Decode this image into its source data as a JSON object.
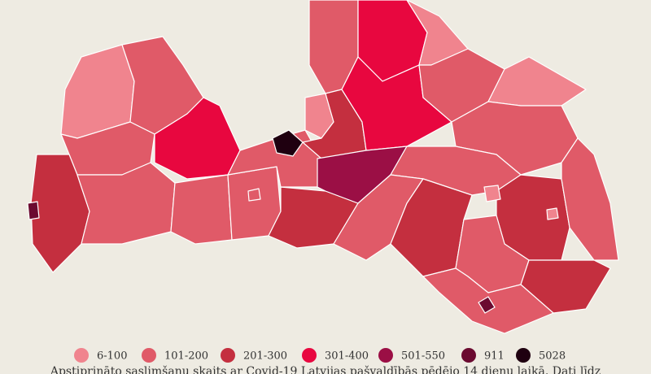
{
  "legend": {
    "items": [
      {
        "label": "6-100",
        "color": "#f0848e"
      },
      {
        "label": "101-200",
        "color": "#e05a68"
      },
      {
        "label": "201-300",
        "color": "#c42f3f"
      },
      {
        "label": "301-400",
        "color": "#e8073f"
      },
      {
        "label": "501-550",
        "color": "#9b0f45"
      },
      {
        "label": "911",
        "color": "#6b0a30"
      },
      {
        "label": "5028",
        "color": "#1f0010"
      }
    ]
  },
  "caption": "Apstiprināto saslimšanu skaits ar Covid-19 Latvijas pašvaldībās pēdējo 14 dienu laikā. Dati līdz"
}
